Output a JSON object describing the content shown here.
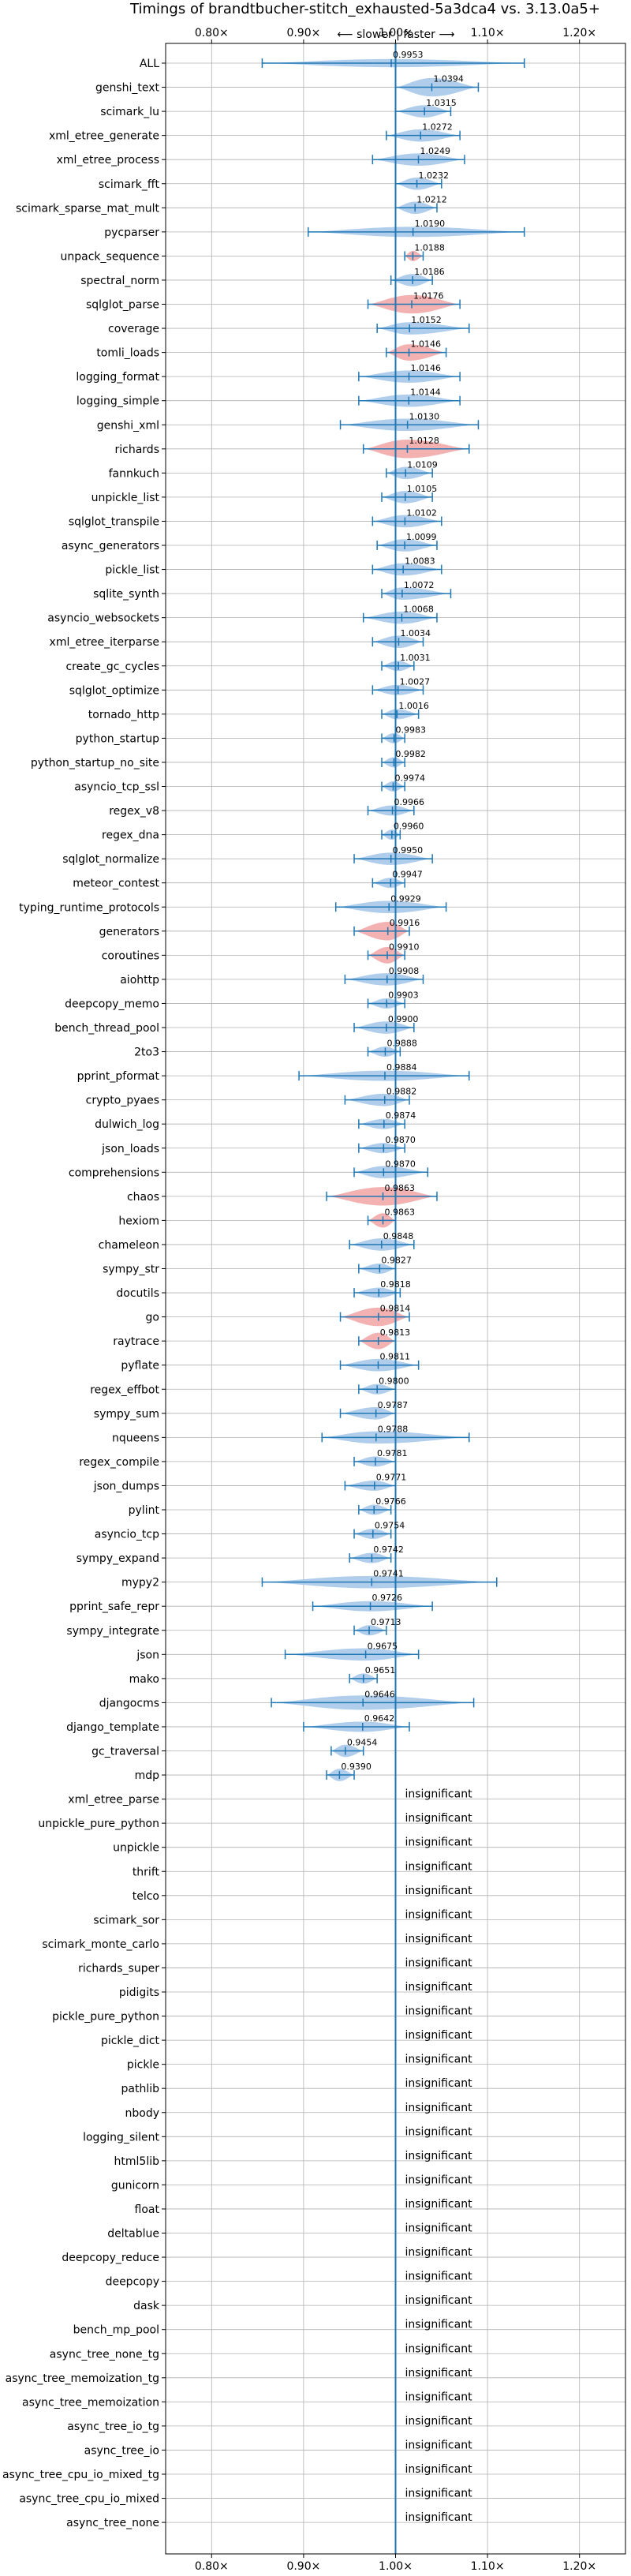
{
  "chart_data": {
    "type": "violin",
    "title": "Timings of brandtbucher-stitch_exhausted-5a3dca4 vs. 3.13.0a5+",
    "direction_label": "⟵ slower | faster ⟶",
    "xlim": [
      0.75,
      1.25
    ],
    "reference_line": 1.0,
    "x_ticks": [
      0.8,
      0.9,
      1.0,
      1.1,
      1.2
    ],
    "x_tick_labels": [
      "0.80×",
      "0.90×",
      "1.00×",
      "1.10×",
      "1.20×"
    ],
    "grid": true,
    "colors": {
      "faster": "#a7c9ea",
      "slower": "#f2a9a9",
      "line": "#1f77b4"
    },
    "insignificant_label": "insignificant",
    "benchmarks": [
      {
        "name": "ALL",
        "ratio": 0.9953,
        "label": "0.9953",
        "lo": 0.855,
        "hi": 1.14,
        "w": 0.4,
        "slower": false
      },
      {
        "name": "genshi_text",
        "ratio": 1.0394,
        "label": "1.0394",
        "lo": 1.0,
        "hi": 1.09,
        "w": 0.9,
        "slower": false
      },
      {
        "name": "scimark_lu",
        "ratio": 1.0315,
        "label": "1.0315",
        "lo": 1.0,
        "hi": 1.06,
        "w": 0.6,
        "slower": false
      },
      {
        "name": "xml_etree_generate",
        "ratio": 1.0272,
        "label": "1.0272",
        "lo": 0.99,
        "hi": 1.07,
        "w": 0.6,
        "slower": false
      },
      {
        "name": "xml_etree_process",
        "ratio": 1.0249,
        "label": "1.0249",
        "lo": 0.975,
        "hi": 1.075,
        "w": 0.6,
        "slower": false
      },
      {
        "name": "scimark_fft",
        "ratio": 1.0232,
        "label": "1.0232",
        "lo": 1.0,
        "hi": 1.05,
        "w": 0.6,
        "slower": false
      },
      {
        "name": "scimark_sparse_mat_mult",
        "ratio": 1.0212,
        "label": "1.0212",
        "lo": 1.0,
        "hi": 1.045,
        "w": 0.6,
        "slower": false
      },
      {
        "name": "pycparser",
        "ratio": 1.019,
        "label": "1.0190",
        "lo": 0.905,
        "hi": 1.14,
        "w": 0.5,
        "slower": false
      },
      {
        "name": "unpack_sequence",
        "ratio": 1.0188,
        "label": "1.0188",
        "lo": 1.01,
        "hi": 1.03,
        "w": 0.5,
        "slower": true
      },
      {
        "name": "spectral_norm",
        "ratio": 1.0186,
        "label": "1.0186",
        "lo": 0.995,
        "hi": 1.04,
        "w": 0.6,
        "slower": false
      },
      {
        "name": "sqlglot_parse",
        "ratio": 1.0176,
        "label": "1.0176",
        "lo": 0.97,
        "hi": 1.07,
        "w": 0.9,
        "slower": true
      },
      {
        "name": "coverage",
        "ratio": 1.0152,
        "label": "1.0152",
        "lo": 0.98,
        "hi": 1.08,
        "w": 0.6,
        "slower": false
      },
      {
        "name": "tomli_loads",
        "ratio": 1.0146,
        "label": "1.0146",
        "lo": 0.99,
        "hi": 1.055,
        "w": 0.8,
        "slower": true
      },
      {
        "name": "logging_format",
        "ratio": 1.0146,
        "label": "1.0146",
        "lo": 0.96,
        "hi": 1.07,
        "w": 0.6,
        "slower": false
      },
      {
        "name": "logging_simple",
        "ratio": 1.0144,
        "label": "1.0144",
        "lo": 0.96,
        "hi": 1.07,
        "w": 0.6,
        "slower": false
      },
      {
        "name": "genshi_xml",
        "ratio": 1.013,
        "label": "1.0130",
        "lo": 0.94,
        "hi": 1.09,
        "w": 0.6,
        "slower": false
      },
      {
        "name": "richards",
        "ratio": 1.0128,
        "label": "1.0128",
        "lo": 0.965,
        "hi": 1.08,
        "w": 0.9,
        "slower": true
      },
      {
        "name": "fannkuch",
        "ratio": 1.0109,
        "label": "1.0109",
        "lo": 0.99,
        "hi": 1.04,
        "w": 0.6,
        "slower": false
      },
      {
        "name": "unpickle_list",
        "ratio": 1.0105,
        "label": "1.0105",
        "lo": 0.985,
        "hi": 1.04,
        "w": 0.6,
        "slower": false
      },
      {
        "name": "sqlglot_transpile",
        "ratio": 1.0102,
        "label": "1.0102",
        "lo": 0.975,
        "hi": 1.05,
        "w": 0.6,
        "slower": false
      },
      {
        "name": "async_generators",
        "ratio": 1.0099,
        "label": "1.0099",
        "lo": 0.98,
        "hi": 1.045,
        "w": 0.6,
        "slower": false
      },
      {
        "name": "pickle_list",
        "ratio": 1.0083,
        "label": "1.0083",
        "lo": 0.975,
        "hi": 1.05,
        "w": 0.6,
        "slower": false
      },
      {
        "name": "sqlite_synth",
        "ratio": 1.0072,
        "label": "1.0072",
        "lo": 0.985,
        "hi": 1.06,
        "w": 0.6,
        "slower": false
      },
      {
        "name": "asyncio_websockets",
        "ratio": 1.0068,
        "label": "1.0068",
        "lo": 0.965,
        "hi": 1.045,
        "w": 0.6,
        "slower": false
      },
      {
        "name": "xml_etree_iterparse",
        "ratio": 1.0034,
        "label": "1.0034",
        "lo": 0.975,
        "hi": 1.03,
        "w": 0.6,
        "slower": false
      },
      {
        "name": "create_gc_cycles",
        "ratio": 1.0031,
        "label": "1.0031",
        "lo": 0.985,
        "hi": 1.02,
        "w": 0.5,
        "slower": false
      },
      {
        "name": "sqlglot_optimize",
        "ratio": 1.0027,
        "label": "1.0027",
        "lo": 0.975,
        "hi": 1.03,
        "w": 0.5,
        "slower": false
      },
      {
        "name": "tornado_http",
        "ratio": 1.0016,
        "label": "1.0016",
        "lo": 0.985,
        "hi": 1.025,
        "w": 0.5,
        "slower": false
      },
      {
        "name": "python_startup",
        "ratio": 0.9983,
        "label": "0.9983",
        "lo": 0.985,
        "hi": 1.01,
        "w": 0.5,
        "slower": false
      },
      {
        "name": "python_startup_no_site",
        "ratio": 0.9982,
        "label": "0.9982",
        "lo": 0.985,
        "hi": 1.01,
        "w": 0.5,
        "slower": false
      },
      {
        "name": "asyncio_tcp_ssl",
        "ratio": 0.9974,
        "label": "0.9974",
        "lo": 0.985,
        "hi": 1.01,
        "w": 0.5,
        "slower": false
      },
      {
        "name": "regex_v8",
        "ratio": 0.9966,
        "label": "0.9966",
        "lo": 0.97,
        "hi": 1.02,
        "w": 0.5,
        "slower": false
      },
      {
        "name": "regex_dna",
        "ratio": 0.996,
        "label": "0.9960",
        "lo": 0.985,
        "hi": 1.005,
        "w": 0.5,
        "slower": false
      },
      {
        "name": "sqlglot_normalize",
        "ratio": 0.995,
        "label": "0.9950",
        "lo": 0.955,
        "hi": 1.04,
        "w": 0.6,
        "slower": false
      },
      {
        "name": "meteor_contest",
        "ratio": 0.9947,
        "label": "0.9947",
        "lo": 0.975,
        "hi": 1.01,
        "w": 0.5,
        "slower": false
      },
      {
        "name": "typing_runtime_protocols",
        "ratio": 0.9929,
        "label": "0.9929",
        "lo": 0.935,
        "hi": 1.055,
        "w": 0.6,
        "slower": false
      },
      {
        "name": "generators",
        "ratio": 0.9916,
        "label": "0.9916",
        "lo": 0.955,
        "hi": 1.015,
        "w": 0.9,
        "slower": true
      },
      {
        "name": "coroutines",
        "ratio": 0.991,
        "label": "0.9910",
        "lo": 0.97,
        "hi": 1.01,
        "w": 0.8,
        "slower": true
      },
      {
        "name": "aiohttp",
        "ratio": 0.9908,
        "label": "0.9908",
        "lo": 0.945,
        "hi": 1.03,
        "w": 0.6,
        "slower": false
      },
      {
        "name": "deepcopy_memo",
        "ratio": 0.9903,
        "label": "0.9903",
        "lo": 0.97,
        "hi": 1.01,
        "w": 0.5,
        "slower": false
      },
      {
        "name": "bench_thread_pool",
        "ratio": 0.99,
        "label": "0.9900",
        "lo": 0.955,
        "hi": 1.02,
        "w": 0.6,
        "slower": false
      },
      {
        "name": "2to3",
        "ratio": 0.9888,
        "label": "0.9888",
        "lo": 0.97,
        "hi": 1.005,
        "w": 0.5,
        "slower": false
      },
      {
        "name": "pprint_pformat",
        "ratio": 0.9884,
        "label": "0.9884",
        "lo": 0.895,
        "hi": 1.08,
        "w": 0.5,
        "slower": false
      },
      {
        "name": "crypto_pyaes",
        "ratio": 0.9882,
        "label": "0.9882",
        "lo": 0.945,
        "hi": 1.015,
        "w": 0.6,
        "slower": false
      },
      {
        "name": "dulwich_log",
        "ratio": 0.9874,
        "label": "0.9874",
        "lo": 0.96,
        "hi": 1.01,
        "w": 0.5,
        "slower": false
      },
      {
        "name": "json_loads",
        "ratio": 0.987,
        "label": "0.9870",
        "lo": 0.96,
        "hi": 1.01,
        "w": 0.5,
        "slower": false
      },
      {
        "name": "comprehensions",
        "ratio": 0.987,
        "label": "0.9870",
        "lo": 0.955,
        "hi": 1.035,
        "w": 0.6,
        "slower": false
      },
      {
        "name": "chaos",
        "ratio": 0.9863,
        "label": "0.9863",
        "lo": 0.925,
        "hi": 1.045,
        "w": 0.9,
        "slower": true
      },
      {
        "name": "hexiom",
        "ratio": 0.9863,
        "label": "0.9863",
        "lo": 0.97,
        "hi": 1.0,
        "w": 0.7,
        "slower": true
      },
      {
        "name": "chameleon",
        "ratio": 0.9848,
        "label": "0.9848",
        "lo": 0.95,
        "hi": 1.02,
        "w": 0.6,
        "slower": false
      },
      {
        "name": "sympy_str",
        "ratio": 0.9827,
        "label": "0.9827",
        "lo": 0.96,
        "hi": 1.0,
        "w": 0.5,
        "slower": false
      },
      {
        "name": "docutils",
        "ratio": 0.9818,
        "label": "0.9818",
        "lo": 0.955,
        "hi": 1.005,
        "w": 0.5,
        "slower": false
      },
      {
        "name": "go",
        "ratio": 0.9814,
        "label": "0.9814",
        "lo": 0.94,
        "hi": 1.015,
        "w": 0.9,
        "slower": true
      },
      {
        "name": "raytrace",
        "ratio": 0.9813,
        "label": "0.9813",
        "lo": 0.96,
        "hi": 1.0,
        "w": 0.8,
        "slower": true
      },
      {
        "name": "pyflate",
        "ratio": 0.9811,
        "label": "0.9811",
        "lo": 0.94,
        "hi": 1.025,
        "w": 0.6,
        "slower": false
      },
      {
        "name": "regex_effbot",
        "ratio": 0.98,
        "label": "0.9800",
        "lo": 0.96,
        "hi": 1.0,
        "w": 0.5,
        "slower": false
      },
      {
        "name": "sympy_sum",
        "ratio": 0.9787,
        "label": "0.9787",
        "lo": 0.94,
        "hi": 1.0,
        "w": 0.6,
        "slower": false
      },
      {
        "name": "nqueens",
        "ratio": 0.9788,
        "label": "0.9788",
        "lo": 0.92,
        "hi": 1.08,
        "w": 0.6,
        "slower": false
      },
      {
        "name": "regex_compile",
        "ratio": 0.9781,
        "label": "0.9781",
        "lo": 0.955,
        "hi": 1.0,
        "w": 0.5,
        "slower": false
      },
      {
        "name": "json_dumps",
        "ratio": 0.9771,
        "label": "0.9771",
        "lo": 0.945,
        "hi": 1.0,
        "w": 0.5,
        "slower": false
      },
      {
        "name": "pylint",
        "ratio": 0.9766,
        "label": "0.9766",
        "lo": 0.96,
        "hi": 0.995,
        "w": 0.5,
        "slower": false
      },
      {
        "name": "asyncio_tcp",
        "ratio": 0.9754,
        "label": "0.9754",
        "lo": 0.955,
        "hi": 0.995,
        "w": 0.5,
        "slower": false
      },
      {
        "name": "sympy_expand",
        "ratio": 0.9742,
        "label": "0.9742",
        "lo": 0.95,
        "hi": 0.995,
        "w": 0.5,
        "slower": false
      },
      {
        "name": "mypy2",
        "ratio": 0.9741,
        "label": "0.9741",
        "lo": 0.855,
        "hi": 1.11,
        "w": 0.6,
        "slower": false
      },
      {
        "name": "pprint_safe_repr",
        "ratio": 0.9726,
        "label": "0.9726",
        "lo": 0.91,
        "hi": 1.04,
        "w": 0.5,
        "slower": false
      },
      {
        "name": "sympy_integrate",
        "ratio": 0.9713,
        "label": "0.9713",
        "lo": 0.955,
        "hi": 0.99,
        "w": 0.5,
        "slower": false
      },
      {
        "name": "json",
        "ratio": 0.9675,
        "label": "0.9675",
        "lo": 0.88,
        "hi": 1.025,
        "w": 0.6,
        "slower": false
      },
      {
        "name": "mako",
        "ratio": 0.9651,
        "label": "0.9651",
        "lo": 0.95,
        "hi": 0.98,
        "w": 0.5,
        "slower": false
      },
      {
        "name": "djangocms",
        "ratio": 0.9646,
        "label": "0.9646",
        "lo": 0.865,
        "hi": 1.085,
        "w": 0.7,
        "slower": false
      },
      {
        "name": "django_template",
        "ratio": 0.9642,
        "label": "0.9642",
        "lo": 0.9,
        "hi": 1.015,
        "w": 0.5,
        "slower": false
      },
      {
        "name": "gc_traversal",
        "ratio": 0.9454,
        "label": "0.9454",
        "lo": 0.93,
        "hi": 0.965,
        "w": 0.6,
        "slower": false
      },
      {
        "name": "mdp",
        "ratio": 0.939,
        "label": "0.9390",
        "lo": 0.925,
        "hi": 0.955,
        "w": 0.6,
        "slower": false
      },
      {
        "name": "xml_etree_parse",
        "insignificant": true
      },
      {
        "name": "unpickle_pure_python",
        "insignificant": true
      },
      {
        "name": "unpickle",
        "insignificant": true
      },
      {
        "name": "thrift",
        "insignificant": true
      },
      {
        "name": "telco",
        "insignificant": true
      },
      {
        "name": "scimark_sor",
        "insignificant": true
      },
      {
        "name": "scimark_monte_carlo",
        "insignificant": true
      },
      {
        "name": "richards_super",
        "insignificant": true
      },
      {
        "name": "pidigits",
        "insignificant": true
      },
      {
        "name": "pickle_pure_python",
        "insignificant": true
      },
      {
        "name": "pickle_dict",
        "insignificant": true
      },
      {
        "name": "pickle",
        "insignificant": true
      },
      {
        "name": "pathlib",
        "insignificant": true
      },
      {
        "name": "nbody",
        "insignificant": true
      },
      {
        "name": "logging_silent",
        "insignificant": true
      },
      {
        "name": "html5lib",
        "insignificant": true
      },
      {
        "name": "gunicorn",
        "insignificant": true
      },
      {
        "name": "float",
        "insignificant": true
      },
      {
        "name": "deltablue",
        "insignificant": true
      },
      {
        "name": "deepcopy_reduce",
        "insignificant": true
      },
      {
        "name": "deepcopy",
        "insignificant": true
      },
      {
        "name": "dask",
        "insignificant": true
      },
      {
        "name": "bench_mp_pool",
        "insignificant": true
      },
      {
        "name": "async_tree_none_tg",
        "insignificant": true
      },
      {
        "name": "async_tree_memoization_tg",
        "insignificant": true
      },
      {
        "name": "async_tree_memoization",
        "insignificant": true
      },
      {
        "name": "async_tree_io_tg",
        "insignificant": true
      },
      {
        "name": "async_tree_io",
        "insignificant": true
      },
      {
        "name": "async_tree_cpu_io_mixed_tg",
        "insignificant": true
      },
      {
        "name": "async_tree_cpu_io_mixed",
        "insignificant": true
      },
      {
        "name": "async_tree_none",
        "insignificant": true
      }
    ]
  }
}
